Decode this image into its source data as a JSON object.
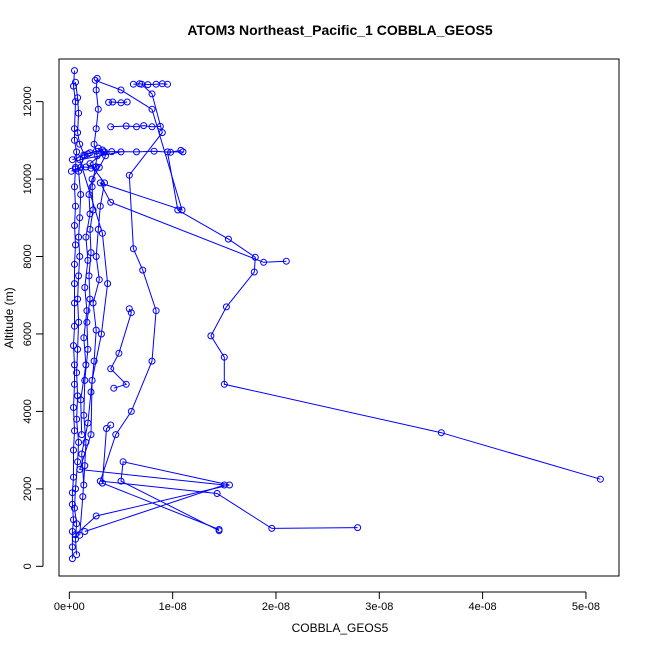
{
  "chart_data": {
    "type": "line",
    "title": "ATOM3 Northeast_Pacific_1 COBBLA_GEOS5",
    "xlabel": "COBBLA_GEOS5",
    "ylabel": "Altitude (m)",
    "xlim": [
      -1e-09,
      5.32e-08
    ],
    "ylim": [
      -250,
      13100
    ],
    "x_ticks": [
      0,
      1e-08,
      2e-08,
      3e-08,
      4e-08,
      5e-08
    ],
    "x_tick_labels": [
      "0e+00",
      "1e-08",
      "2e-08",
      "3e-08",
      "4e-08",
      "5e-08"
    ],
    "y_ticks": [
      0,
      2000,
      4000,
      6000,
      8000,
      10000,
      12000
    ],
    "y_tick_labels": [
      "0",
      "2000",
      "4000",
      "6000",
      "8000",
      "10000",
      "12000"
    ],
    "color": "#0000ff",
    "marker": "open-circle",
    "grid": false,
    "series": [
      {
        "points": [
          [
            1.5e-09,
            900
          ],
          [
            1.5e-08,
            2100
          ],
          [
            1e-09,
            2500
          ],
          [
            2.1e-09,
            3400
          ],
          [
            2.2e-09,
            4800
          ],
          [
            3.1e-09,
            6000
          ],
          [
            3.7e-09,
            7300
          ],
          [
            3.2e-09,
            8600
          ],
          [
            1e-09,
            10500
          ],
          [
            5e-09,
            10700
          ]
        ]
      },
      {
        "points": [
          [
            2.79e-08,
            1000
          ],
          [
            1.96e-08,
            980
          ],
          [
            1.43e-08,
            1880
          ],
          [
            3e-09,
            2200
          ],
          [
            4.5e-09,
            3400
          ],
          [
            6e-09,
            4000
          ],
          [
            8e-09,
            5300
          ],
          [
            8.4e-09,
            6600
          ],
          [
            7.1e-09,
            7650
          ],
          [
            6.2e-09,
            8200
          ],
          [
            5.8e-09,
            10100
          ],
          [
            9e-09,
            11200
          ],
          [
            8e-09,
            12200
          ],
          [
            7e-09,
            12450
          ]
        ]
      },
      {
        "points": [
          [
            5.14e-08,
            2250
          ],
          [
            3.6e-08,
            3450
          ],
          [
            1.5e-08,
            4700
          ],
          [
            1.5e-08,
            5400
          ],
          [
            1.37e-08,
            5950
          ],
          [
            1.52e-08,
            6700
          ],
          [
            1.79e-08,
            7600
          ],
          [
            1.8e-08,
            7980
          ],
          [
            1.54e-08,
            8450
          ],
          [
            1.05e-08,
            9200
          ],
          [
            9.5e-09,
            10700
          ],
          [
            1.1e-08,
            10700
          ]
        ]
      },
      {
        "points": [
          [
            1.45e-08,
            920
          ],
          [
            5e-09,
            2200
          ],
          [
            5.2e-09,
            2700
          ],
          [
            1.55e-08,
            2100
          ],
          [
            2.6e-09,
            1300
          ],
          [
            6e-10,
            820
          ]
        ]
      },
      {
        "points": [
          [
            4.3e-09,
            4600
          ],
          [
            5.5e-09,
            4700
          ],
          [
            4e-09,
            5100
          ],
          [
            4.8e-09,
            5500
          ],
          [
            6e-09,
            6550
          ],
          [
            5.8e-09,
            6650
          ]
        ]
      },
      {
        "points": [
          [
            2.1e-08,
            7880
          ],
          [
            1.88e-08,
            7850
          ],
          [
            4e-09,
            9400
          ],
          [
            3e-09,
            9900
          ],
          [
            1.09e-08,
            9200
          ],
          [
            8e-09,
            11800
          ],
          [
            5e-09,
            12300
          ],
          [
            2.5e-09,
            12550
          ]
        ]
      },
      {
        "points": [
          [
            4e-09,
            3650
          ],
          [
            3.6e-09,
            3560
          ],
          [
            3.2e-09,
            2150
          ],
          [
            1.45e-08,
            950
          ]
        ]
      },
      {
        "points": [
          [
            3e-10,
            200
          ],
          [
            3e-10,
            500
          ],
          [
            3e-10,
            900
          ],
          [
            4e-10,
            1200
          ],
          [
            3e-10,
            1600
          ],
          [
            3e-10,
            1900
          ],
          [
            4e-10,
            2300
          ],
          [
            4e-10,
            3000
          ],
          [
            5e-10,
            3500
          ],
          [
            4e-10,
            4100
          ],
          [
            5e-10,
            4700
          ],
          [
            5e-10,
            5200
          ],
          [
            4e-10,
            5700
          ],
          [
            5e-10,
            6200
          ],
          [
            5e-10,
            6800
          ],
          [
            5e-10,
            7300
          ],
          [
            5e-10,
            7800
          ],
          [
            6e-10,
            8300
          ],
          [
            5e-10,
            8800
          ],
          [
            6e-10,
            9300
          ],
          [
            5e-10,
            9800
          ],
          [
            6e-10,
            10300
          ],
          [
            7e-10,
            10700
          ],
          [
            5e-10,
            11000
          ],
          [
            5e-10,
            11300
          ],
          [
            6e-10,
            12000
          ],
          [
            4e-10,
            12400
          ],
          [
            5e-10,
            12800
          ]
        ]
      },
      {
        "points": [
          [
            7e-10,
            300
          ],
          [
            6e-10,
            700
          ],
          [
            7e-10,
            1100
          ],
          [
            5e-10,
            1500
          ],
          [
            6e-10,
            2000
          ],
          [
            8e-10,
            2700
          ],
          [
            9e-10,
            3200
          ],
          [
            7e-10,
            3800
          ],
          [
            8e-10,
            4400
          ],
          [
            7e-10,
            5000
          ],
          [
            8e-10,
            5600
          ],
          [
            9e-10,
            6300
          ],
          [
            8e-10,
            6900
          ],
          [
            9e-10,
            7500
          ],
          [
            1e-09,
            8000
          ],
          [
            9e-10,
            8500
          ],
          [
            1e-09,
            9000
          ],
          [
            1.1e-09,
            9600
          ],
          [
            9e-10,
            10200
          ],
          [
            1.5e-09,
            10600
          ],
          [
            1e-09,
            10900
          ],
          [
            8e-10,
            11200
          ],
          [
            9e-10,
            11700
          ],
          [
            8e-10,
            12100
          ],
          [
            6e-10,
            12500
          ]
        ]
      },
      {
        "points": [
          [
            1e-09,
            800
          ],
          [
            1.3e-09,
            1800
          ],
          [
            1.5e-09,
            2600
          ],
          [
            1.6e-09,
            3200
          ],
          [
            1.4e-09,
            3900
          ],
          [
            1.5e-09,
            4800
          ],
          [
            1.8e-09,
            5600
          ],
          [
            1.7e-09,
            6300
          ],
          [
            2e-09,
            6900
          ],
          [
            1.9e-09,
            7500
          ],
          [
            2.1e-09,
            8100
          ],
          [
            2e-09,
            8700
          ],
          [
            2.3e-09,
            9200
          ],
          [
            2.2e-09,
            9800
          ],
          [
            2.5e-09,
            10300
          ],
          [
            2.7e-09,
            10600
          ],
          [
            2.4e-09,
            10900
          ],
          [
            2.6e-09,
            11300
          ],
          [
            2.8e-09,
            11800
          ],
          [
            2.6e-09,
            12300
          ],
          [
            2.7e-09,
            12600
          ]
        ]
      },
      {
        "points": [
          [
            1.2e-09,
            3400
          ],
          [
            1.1e-09,
            4300
          ],
          [
            1.6e-09,
            5200
          ],
          [
            1.4e-09,
            5900
          ],
          [
            1.7e-09,
            6600
          ],
          [
            1.5e-09,
            7200
          ],
          [
            1.8e-09,
            7900
          ],
          [
            1.6e-09,
            8500
          ],
          [
            2e-09,
            9100
          ],
          [
            1.9e-09,
            9600
          ],
          [
            2.2e-09,
            10000
          ],
          [
            2.9e-09,
            10300
          ],
          [
            3.5e-09,
            10600
          ],
          [
            3.2e-09,
            10750
          ],
          [
            1.8e-09,
            10650
          ]
        ]
      },
      {
        "points": [
          [
            1.4e-09,
            2100
          ],
          [
            1.2e-09,
            2900
          ],
          [
            1.8e-09,
            3700
          ],
          [
            2.1e-09,
            4500
          ],
          [
            2.4e-09,
            5300
          ],
          [
            2.6e-09,
            6100
          ],
          [
            2.3e-09,
            6800
          ],
          [
            2.9e-09,
            7400
          ],
          [
            2.6e-09,
            8000
          ],
          [
            2.8e-09,
            8700
          ],
          [
            3e-09,
            9300
          ],
          [
            3.4e-09,
            9900
          ],
          [
            2e-09,
            10400
          ],
          [
            3.4e-09,
            10700
          ],
          [
            2.8e-09,
            10800
          ]
        ]
      },
      {
        "points": [
          [
            3e-10,
            10500
          ],
          [
            8e-10,
            10550
          ],
          [
            1.4e-09,
            10620
          ],
          [
            2e-09,
            10680
          ],
          [
            2.6e-09,
            10720
          ],
          [
            3.3e-09,
            10700
          ],
          [
            4.1e-09,
            10710
          ],
          [
            6.5e-09,
            10700
          ],
          [
            8.2e-09,
            10720
          ],
          [
            9.8e-09,
            10690
          ],
          [
            1.08e-08,
            10740
          ]
        ]
      },
      {
        "points": [
          [
            2e-10,
            10200
          ],
          [
            6e-10,
            10260
          ],
          [
            1.1e-09,
            10300
          ],
          [
            1.6e-09,
            10310
          ],
          [
            2.1e-09,
            10280
          ],
          [
            2.6e-09,
            10320
          ]
        ]
      },
      {
        "points": [
          [
            4e-09,
            11350
          ],
          [
            5.5e-09,
            11370
          ],
          [
            6.5e-09,
            11350
          ],
          [
            7.2e-09,
            11380
          ],
          [
            8e-09,
            11350
          ],
          [
            8.8e-09,
            11360
          ]
        ]
      },
      {
        "points": [
          [
            3.8e-09,
            11980
          ],
          [
            4.2e-09,
            11990
          ],
          [
            5e-09,
            11970
          ],
          [
            5.6e-09,
            11990
          ]
        ]
      },
      {
        "points": [
          [
            6.2e-09,
            12450
          ],
          [
            6.8e-09,
            12460
          ],
          [
            7.6e-09,
            12440
          ],
          [
            8.4e-09,
            12450
          ],
          [
            9e-09,
            12460
          ],
          [
            9.5e-09,
            12450
          ]
        ]
      }
    ]
  }
}
